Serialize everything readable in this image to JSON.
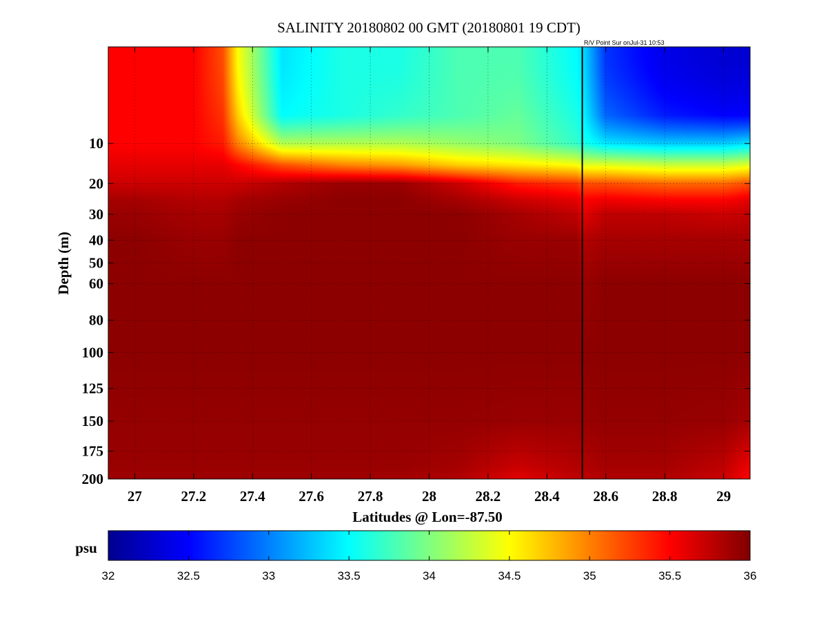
{
  "chart_data": {
    "type": "heatmap",
    "title": "SALINITY 20180802 00 GMT (20180801 19 CDT)",
    "annotation": "R/V Point Sur onJul-31 10:53",
    "xlabel": "Latitudes @ Lon=-87.50",
    "ylabel": "Depth (m)",
    "xlim": [
      26.91,
      29.09
    ],
    "ylim": [
      0,
      200
    ],
    "y_axis_scale": "square-root (depth)",
    "y_axis_inverted": true,
    "xticks": [
      27,
      27.2,
      27.4,
      27.6,
      27.8,
      28,
      28.2,
      28.4,
      28.6,
      28.8,
      29
    ],
    "xtick_labels": [
      "27",
      "27.2",
      "27.4",
      "27.6",
      "27.8",
      "28",
      "28.2",
      "28.4",
      "28.6",
      "28.8",
      "29"
    ],
    "yticks": [
      10,
      20,
      30,
      40,
      50,
      60,
      80,
      100,
      125,
      150,
      175,
      200
    ],
    "ytick_labels": [
      "10",
      "20",
      "30",
      "40",
      "50",
      "60",
      "80",
      "100",
      "125",
      "150",
      "175",
      "200"
    ],
    "grid": true,
    "vessel_track_lat": 28.52,
    "colormap": "jet",
    "colorbar": {
      "label": "psu",
      "range": [
        32,
        36
      ],
      "ticks": [
        32,
        32.5,
        33,
        33.5,
        34,
        34.5,
        35,
        35.5,
        36
      ],
      "tick_labels": [
        "32",
        "32.5",
        "33",
        "33.5",
        "34",
        "34.5",
        "35",
        "35.5",
        "36"
      ]
    },
    "approx_field": {
      "depths": [
        0,
        5,
        10,
        15,
        20,
        25,
        30,
        40,
        60,
        100,
        150,
        190,
        200
      ],
      "lats": [
        26.91,
        27.0,
        27.2,
        27.3,
        27.35,
        27.5,
        27.7,
        27.9,
        28.1,
        28.3,
        28.5,
        28.52,
        28.6,
        28.8,
        29.0,
        29.09
      ],
      "salinity": [
        [
          35.5,
          35.5,
          35.5,
          35.2,
          34.5,
          33.4,
          33.6,
          33.6,
          33.8,
          33.8,
          33.5,
          33.4,
          32.7,
          32.4,
          32.3,
          32.3
        ],
        [
          35.5,
          35.5,
          35.5,
          35.3,
          34.7,
          33.5,
          33.6,
          33.7,
          33.8,
          33.9,
          33.6,
          33.5,
          32.9,
          32.6,
          32.5,
          32.5
        ],
        [
          35.5,
          35.5,
          35.5,
          35.4,
          35.0,
          34.2,
          34.2,
          34.2,
          34.1,
          34.0,
          33.7,
          33.6,
          33.4,
          33.3,
          33.3,
          33.4
        ],
        [
          35.6,
          35.6,
          35.6,
          35.6,
          35.5,
          35.2,
          35.0,
          34.9,
          34.7,
          34.6,
          34.5,
          34.4,
          34.4,
          34.3,
          34.3,
          34.4
        ],
        [
          35.7,
          35.7,
          35.7,
          35.7,
          35.7,
          35.8,
          35.9,
          35.9,
          35.7,
          35.4,
          35.3,
          35.2,
          35.2,
          35.1,
          35.1,
          35.2
        ],
        [
          35.85,
          35.85,
          35.8,
          35.8,
          35.85,
          35.9,
          35.95,
          35.95,
          35.85,
          35.7,
          35.6,
          35.5,
          35.55,
          35.5,
          35.5,
          35.6
        ],
        [
          35.9,
          35.9,
          35.85,
          35.85,
          35.9,
          35.95,
          35.95,
          35.95,
          35.95,
          35.85,
          35.75,
          35.6,
          35.75,
          35.75,
          35.7,
          35.75
        ],
        [
          35.95,
          35.95,
          35.9,
          35.9,
          35.95,
          35.95,
          35.95,
          35.95,
          35.95,
          35.9,
          35.9,
          35.8,
          35.85,
          35.85,
          35.85,
          35.85
        ],
        [
          35.95,
          35.95,
          35.95,
          35.95,
          35.95,
          35.95,
          35.95,
          35.95,
          35.95,
          35.95,
          35.95,
          35.9,
          35.95,
          35.95,
          35.95,
          35.95
        ],
        [
          35.95,
          35.95,
          35.95,
          35.95,
          35.95,
          35.95,
          35.95,
          35.95,
          35.95,
          35.95,
          35.95,
          35.95,
          35.95,
          35.95,
          35.95,
          35.95
        ],
        [
          35.92,
          35.92,
          35.92,
          35.92,
          35.92,
          35.92,
          35.92,
          35.92,
          35.92,
          35.9,
          35.9,
          35.9,
          35.92,
          35.92,
          35.9,
          35.85
        ],
        [
          35.9,
          35.9,
          35.9,
          35.9,
          35.9,
          35.9,
          35.9,
          35.9,
          35.85,
          35.7,
          35.8,
          35.8,
          35.85,
          35.85,
          35.75,
          35.55
        ],
        [
          35.88,
          35.88,
          35.88,
          35.88,
          35.88,
          35.88,
          35.88,
          35.85,
          35.8,
          35.6,
          35.75,
          35.75,
          35.8,
          35.8,
          35.7,
          35.5
        ]
      ]
    }
  }
}
